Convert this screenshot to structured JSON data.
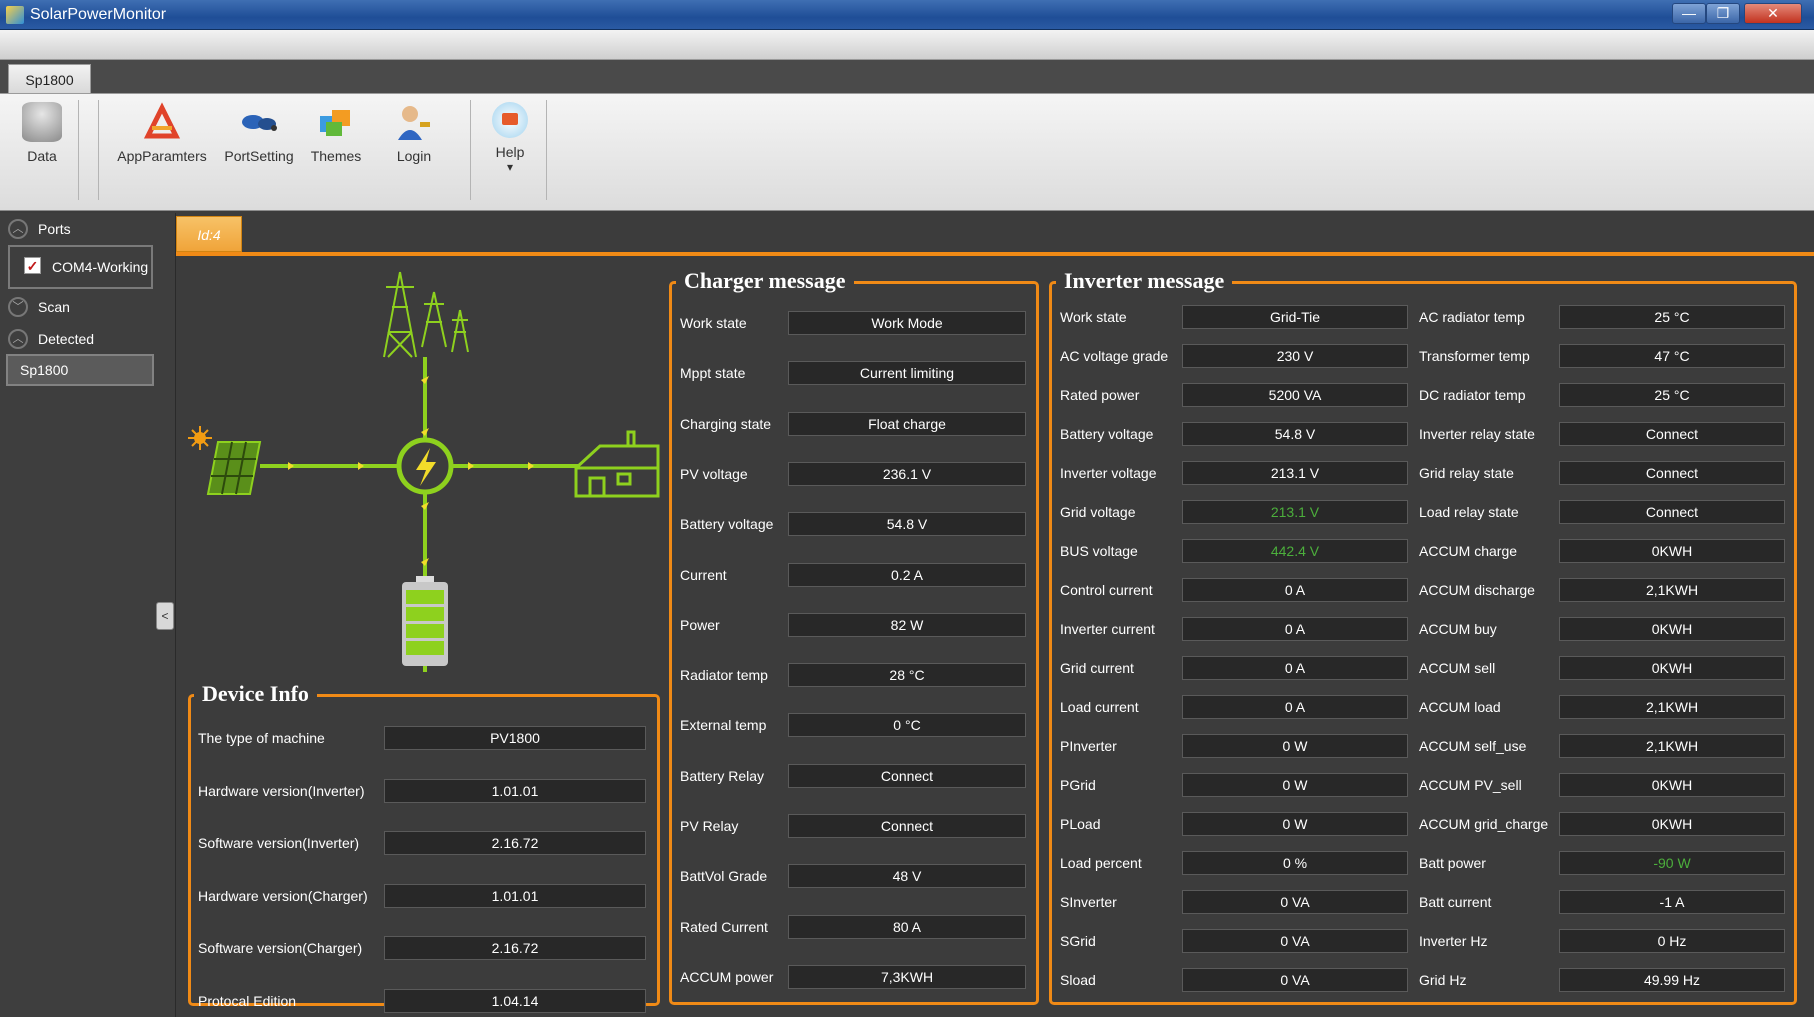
{
  "window": {
    "title": "SolarPowerMonitor",
    "min": "—",
    "max": "❐",
    "close": "✕"
  },
  "doc_tab": "Sp1800",
  "ribbon": [
    {
      "label": "Data",
      "icon": "database-icon"
    },
    {
      "label": "AppParamters",
      "icon": "app-parameters-icon"
    },
    {
      "label": "PortSetting",
      "icon": "port-setting-icon"
    },
    {
      "label": "Themes",
      "icon": "themes-icon"
    },
    {
      "label": "Login",
      "icon": "login-icon"
    },
    {
      "label": "Help",
      "icon": "help-icon",
      "dropdown": "▾"
    }
  ],
  "sidebar": {
    "ports": "Ports",
    "com": "COM4-Working",
    "com_checked": true,
    "scan": "Scan",
    "detected": "Detected",
    "device": "Sp1800",
    "collapse": "<"
  },
  "id_tab": "Id:4",
  "device_info": {
    "title": "Device Info",
    "rows": [
      {
        "label": "The type of machine",
        "value": "PV1800"
      },
      {
        "label": "Hardware version(Inverter)",
        "value": "1.01.01"
      },
      {
        "label": "Software version(Inverter)",
        "value": "2.16.72"
      },
      {
        "label": "Hardware version(Charger)",
        "value": "1.01.01"
      },
      {
        "label": "Software version(Charger)",
        "value": "2.16.72"
      },
      {
        "label": "Protocal Edition",
        "value": "1.04.14"
      }
    ]
  },
  "charger": {
    "title": "Charger message",
    "rows": [
      {
        "label": "Work state",
        "value": "Work Mode"
      },
      {
        "label": "Mppt state",
        "value": "Current limiting"
      },
      {
        "label": "Charging state",
        "value": "Float charge"
      },
      {
        "label": "PV voltage",
        "value": "236.1 V"
      },
      {
        "label": "Battery voltage",
        "value": "54.8 V"
      },
      {
        "label": "Current",
        "value": "0.2 A"
      },
      {
        "label": "Power",
        "value": "82 W"
      },
      {
        "label": "Radiator temp",
        "value": "28 °C"
      },
      {
        "label": "External temp",
        "value": "0 °C"
      },
      {
        "label": "Battery Relay",
        "value": "Connect"
      },
      {
        "label": "PV Relay",
        "value": "Connect"
      },
      {
        "label": "BattVol Grade",
        "value": "48 V"
      },
      {
        "label": "Rated Current",
        "value": "80 A"
      },
      {
        "label": "ACCUM power",
        "value": "7,3KWH"
      }
    ]
  },
  "inverter": {
    "title": "Inverter message",
    "left": [
      {
        "label": "Work state",
        "value": "Grid-Tie"
      },
      {
        "label": "AC voltage grade",
        "value": "230 V"
      },
      {
        "label": "Rated power",
        "value": "5200 VA"
      },
      {
        "label": "Battery voltage",
        "value": "54.8 V"
      },
      {
        "label": "Inverter voltage",
        "value": "213.1 V"
      },
      {
        "label": "Grid voltage",
        "value": "213.1 V",
        "highlight": "#4caf3c"
      },
      {
        "label": "BUS voltage",
        "value": "442.4 V",
        "highlight": "#4caf3c"
      },
      {
        "label": "Control current",
        "value": "0 A"
      },
      {
        "label": "Inverter current",
        "value": "0 A"
      },
      {
        "label": "Grid current",
        "value": "0 A"
      },
      {
        "label": "Load current",
        "value": "0 A"
      },
      {
        "label": "PInverter",
        "value": "0 W"
      },
      {
        "label": "PGrid",
        "value": "0 W"
      },
      {
        "label": "PLoad",
        "value": "0 W"
      },
      {
        "label": "Load percent",
        "value": "0 %"
      },
      {
        "label": "SInverter",
        "value": "0 VA"
      },
      {
        "label": "SGrid",
        "value": "0 VA"
      },
      {
        "label": "Sload",
        "value": "0 VA"
      }
    ],
    "right": [
      {
        "label": "AC radiator temp",
        "value": "25 °C"
      },
      {
        "label": "Transformer temp",
        "value": "47 °C"
      },
      {
        "label": "DC radiator temp",
        "value": "25 °C"
      },
      {
        "label": "Inverter relay state",
        "value": "Connect"
      },
      {
        "label": "Grid relay state",
        "value": "Connect"
      },
      {
        "label": "Load relay state",
        "value": "Connect"
      },
      {
        "label": "ACCUM charge",
        "value": "0KWH"
      },
      {
        "label": "ACCUM discharge",
        "value": "2,1KWH"
      },
      {
        "label": "ACCUM buy",
        "value": "0KWH"
      },
      {
        "label": "ACCUM sell",
        "value": "0KWH"
      },
      {
        "label": "ACCUM load",
        "value": "2,1KWH"
      },
      {
        "label": "ACCUM self_use",
        "value": "2,1KWH"
      },
      {
        "label": "ACCUM PV_sell",
        "value": "0KWH"
      },
      {
        "label": "ACCUM grid_charge",
        "value": "0KWH"
      },
      {
        "label": "Batt power",
        "value": "-90 W",
        "highlight": "#4caf3c"
      },
      {
        "label": "Batt current",
        "value": "-1 A"
      },
      {
        "label": "Inverter Hz",
        "value": "0 Hz"
      },
      {
        "label": "Grid Hz",
        "value": "49.99 Hz"
      }
    ]
  },
  "colors": {
    "accent": "#f08a16",
    "background": "#3c3c3c",
    "field": "#282828",
    "flow_green": "#8ed11e"
  }
}
